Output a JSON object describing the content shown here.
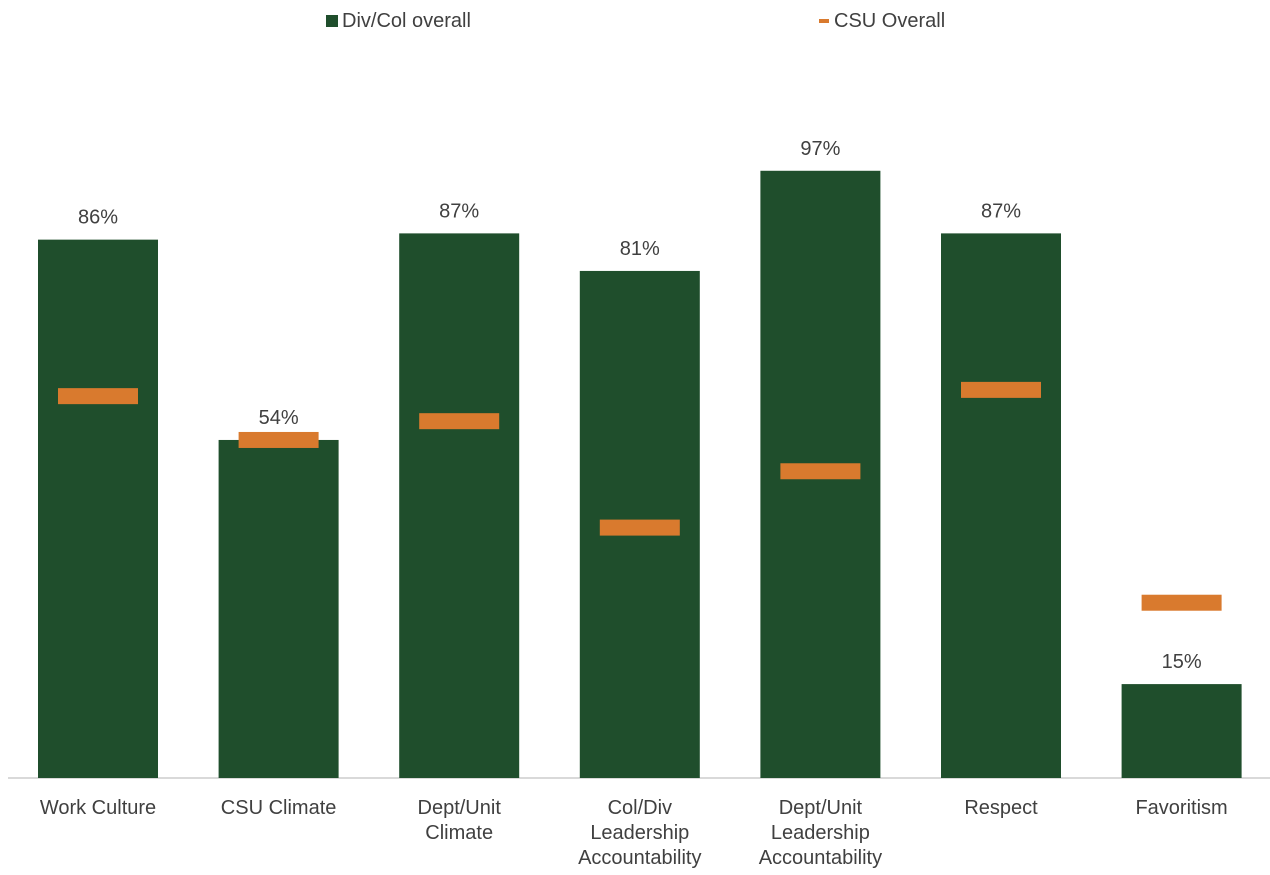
{
  "chart_data": {
    "type": "bar",
    "categories": [
      "Work Culture",
      "CSU Climate",
      "Dept/Unit Climate",
      "Col/Div Leadership Accountability",
      "Dept/Unit Leadership Accountability",
      "Respect",
      "Favoritism"
    ],
    "category_lines": [
      [
        "Work Culture"
      ],
      [
        "CSU Climate"
      ],
      [
        "Dept/Unit",
        "Climate"
      ],
      [
        "Col/Div",
        "Leadership",
        "Accountability"
      ],
      [
        "Dept/Unit",
        "Leadership",
        "Accountability"
      ],
      [
        "Respect"
      ],
      [
        "Favoritism"
      ]
    ],
    "series": [
      {
        "name": "Div/Col overall",
        "kind": "bar",
        "values": [
          86,
          54,
          87,
          81,
          97,
          87,
          15
        ],
        "labels": [
          "86%",
          "54%",
          "87%",
          "81%",
          "97%",
          "87%",
          "15%"
        ],
        "color": "#1F4E2C"
      },
      {
        "name": "CSU Overall",
        "kind": "marker",
        "values": [
          61,
          54,
          57,
          40,
          49,
          62,
          28
        ],
        "color": "#D97A2E"
      }
    ],
    "ylim": [
      0,
      100
    ],
    "xlabel": "",
    "ylabel": "",
    "legend_position": "top",
    "grid": false
  }
}
